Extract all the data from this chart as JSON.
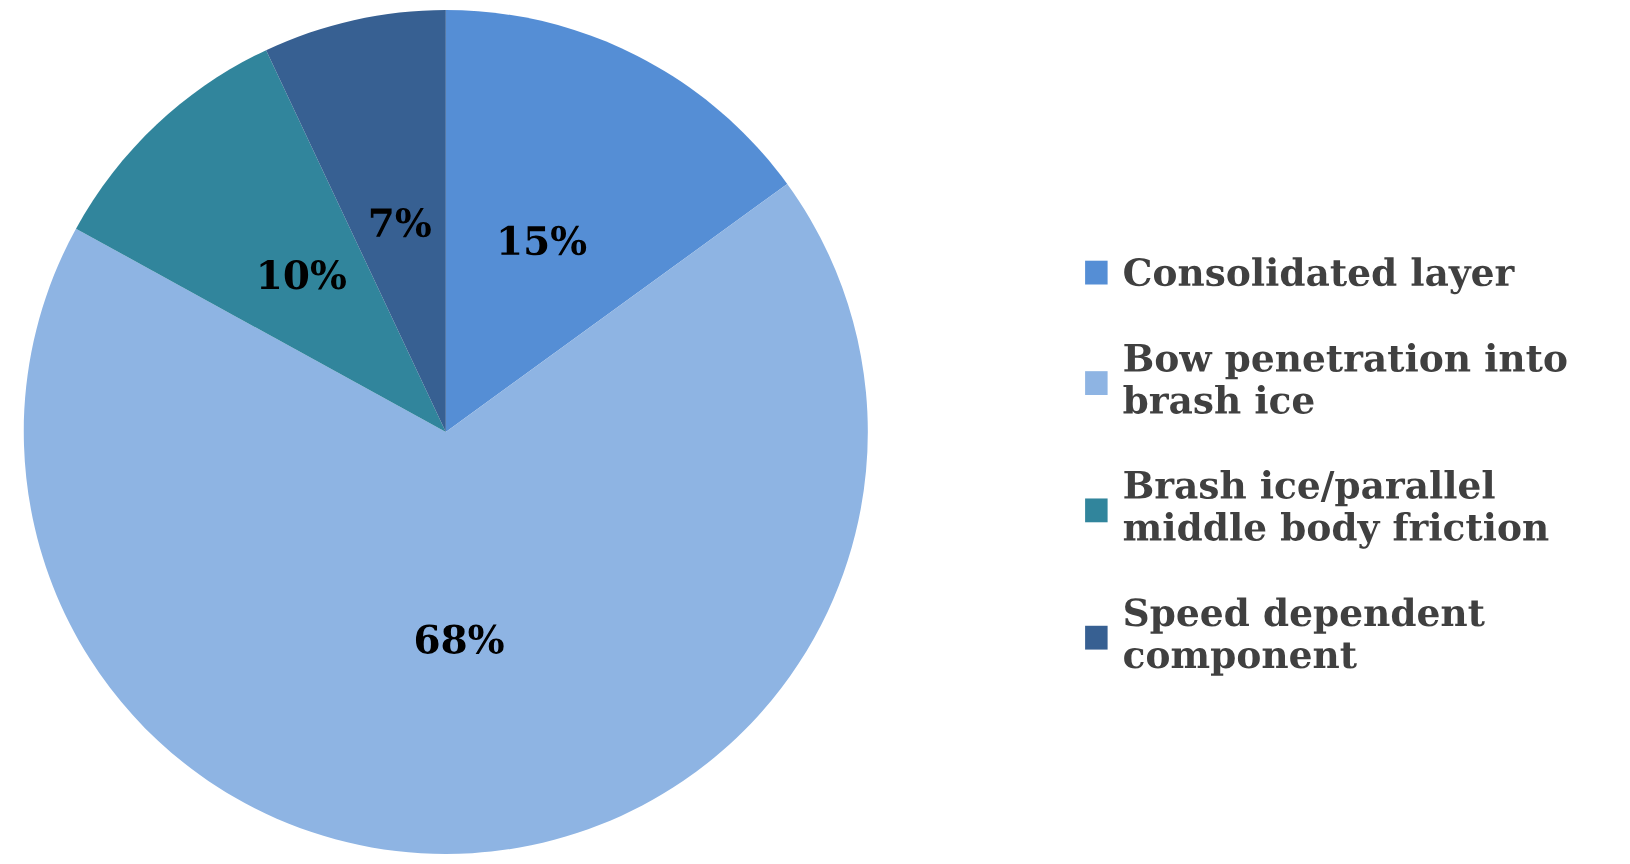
{
  "chart_data": {
    "type": "pie",
    "categories": [
      "Consolidated layer",
      "Bow penetration into\nbrash ice",
      "Brash ice/parallel\nmiddle body friction",
      "Speed dependent\ncomponent"
    ],
    "values": [
      15,
      68,
      10,
      7
    ],
    "colors": [
      "#558ed5",
      "#8eb4e3",
      "#31859c",
      "#376092"
    ],
    "value_labels": [
      "15%",
      "68%",
      "10%",
      "7%"
    ],
    "legend": "right"
  }
}
